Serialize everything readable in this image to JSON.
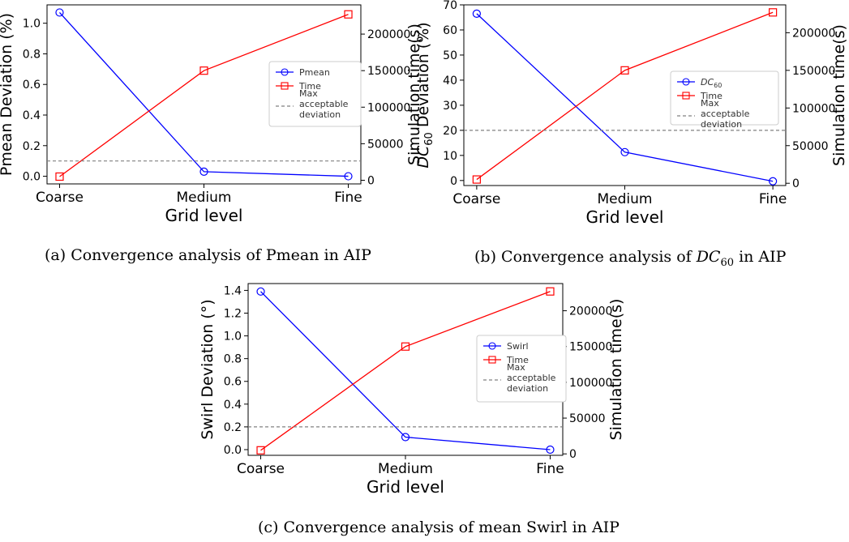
{
  "figure": {
    "captions": [
      {
        "prefix": "(a) Convergence analysis of Pmean in AIP",
        "math": "",
        "sub": "",
        "suffix": ""
      },
      {
        "prefix": "(b) Convergence analysis of ",
        "math": "DC",
        "sub": "60",
        "suffix": " in AIP"
      },
      {
        "prefix": "(c) Convergence analysis of mean Swirl in AIP",
        "math": "",
        "sub": "",
        "suffix": ""
      }
    ]
  },
  "chart_data": [
    {
      "type": "line",
      "categories": [
        "Coarse",
        "Medium",
        "Fine"
      ],
      "xlabel": "Grid level",
      "ylabel_left": "Pmean Deviation (%)",
      "ylabel_right": "Simulation time(s)",
      "ylim_left": [
        -0.05,
        1.12
      ],
      "ylim_right": [
        -5000,
        240000
      ],
      "yticks_left": [
        "0.0",
        "0.2",
        "0.4",
        "0.6",
        "0.8",
        "1.0"
      ],
      "yticks_right": [
        "0",
        "50000",
        "100000",
        "150000",
        "200000"
      ],
      "threshold": 0.1,
      "legend_position": "center-right",
      "series": [
        {
          "name": "Pmean",
          "axis": "left",
          "color": "#0000ff",
          "marker": "circle",
          "values": [
            1.07,
            0.03,
            0.0
          ]
        },
        {
          "name": "Time",
          "axis": "right",
          "color": "#ff0000",
          "marker": "square",
          "values": [
            5000,
            150000,
            227000
          ]
        },
        {
          "name": "Max acceptable deviation",
          "axis": "left",
          "color": "#808080",
          "style": "dashed",
          "values": [
            0.1,
            0.1,
            0.1
          ]
        }
      ]
    },
    {
      "type": "line",
      "categories": [
        "Coarse",
        "Medium",
        "Fine"
      ],
      "xlabel": "Grid level",
      "ylabel_left": "DC60 Deviation (%)",
      "ylabel_right": "Simulation time(s)",
      "ylim_left": [
        -2,
        70
      ],
      "ylim_right": [
        -3000,
        237000
      ],
      "yticks_left": [
        "0",
        "10",
        "20",
        "30",
        "40",
        "50",
        "60",
        "70"
      ],
      "yticks_right": [
        "0",
        "50000",
        "100000",
        "150000",
        "200000"
      ],
      "threshold": 20,
      "legend_position": "center-right",
      "series": [
        {
          "name": "DC60",
          "axis": "left",
          "color": "#0000ff",
          "marker": "circle",
          "values": [
            66.5,
            11.3,
            -0.3
          ]
        },
        {
          "name": "Time",
          "axis": "right",
          "color": "#ff0000",
          "marker": "square",
          "values": [
            5000,
            150000,
            227000
          ]
        },
        {
          "name": "Max acceptable deviation",
          "axis": "left",
          "color": "#808080",
          "style": "dashed",
          "values": [
            20,
            20,
            20
          ]
        }
      ]
    },
    {
      "type": "line",
      "categories": [
        "Coarse",
        "Medium",
        "Fine"
      ],
      "xlabel": "Grid level",
      "ylabel_left": "Swirl Deviation (°)",
      "ylabel_right": "Simulation time(s)",
      "ylim_left": [
        -0.05,
        1.46
      ],
      "ylim_right": [
        -2000,
        238000
      ],
      "yticks_left": [
        "0.0",
        "0.2",
        "0.4",
        "0.6",
        "0.8",
        "1.0",
        "1.2",
        "1.4"
      ],
      "yticks_right": [
        "0",
        "50000",
        "100000",
        "150000",
        "200000"
      ],
      "threshold": 0.2,
      "legend_position": "center-right",
      "series": [
        {
          "name": "Swirl",
          "axis": "left",
          "color": "#0000ff",
          "marker": "circle",
          "values": [
            1.39,
            0.11,
            0.0
          ]
        },
        {
          "name": "Time",
          "axis": "right",
          "color": "#ff0000",
          "marker": "square",
          "values": [
            5000,
            150000,
            227000
          ]
        },
        {
          "name": "Max acceptable deviation",
          "axis": "left",
          "color": "#808080",
          "style": "dashed",
          "values": [
            0.2,
            0.2,
            0.2
          ]
        }
      ]
    }
  ]
}
